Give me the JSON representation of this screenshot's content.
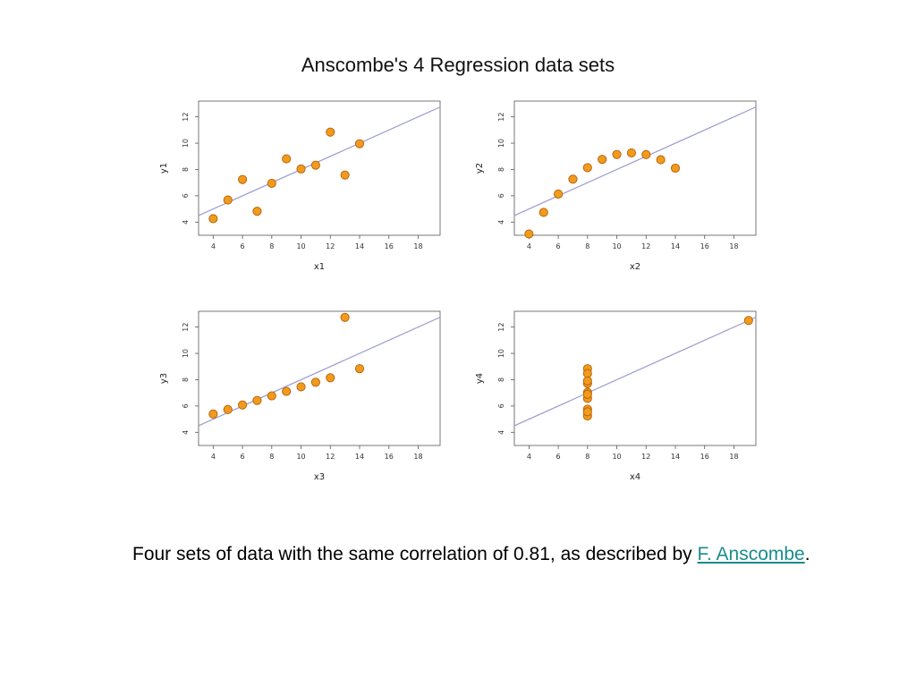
{
  "title": "Anscombe's 4 Regression data sets",
  "caption": {
    "text_before": "Four sets of data with the same correlation of 0.81, as described by ",
    "link_text": "F. Anscombe",
    "text_after": "."
  },
  "colors": {
    "point_fill": "#f29a1c",
    "point_stroke": "#b3600a",
    "regression_line": "#9b9bd0",
    "frame": "#555555",
    "link": "#1a8c8c"
  },
  "chart_data": [
    {
      "type": "scatter",
      "xlabel": "x1",
      "ylabel": "y1",
      "xlim": [
        3,
        19.5
      ],
      "ylim": [
        3,
        13.2
      ],
      "xticks": [
        "4",
        "6",
        "8",
        "10",
        "12",
        "14",
        "16",
        "18"
      ],
      "yticks": [
        "4",
        "6",
        "8",
        "10",
        "12"
      ],
      "x": [
        10,
        8,
        13,
        9,
        11,
        14,
        6,
        4,
        12,
        7,
        5
      ],
      "y": [
        8.04,
        6.95,
        7.58,
        8.81,
        8.33,
        9.96,
        7.24,
        4.26,
        10.84,
        4.82,
        5.68
      ],
      "regression": {
        "intercept": 3.0,
        "slope": 0.5
      }
    },
    {
      "type": "scatter",
      "xlabel": "x2",
      "ylabel": "y2",
      "xlim": [
        3,
        19.5
      ],
      "ylim": [
        3,
        13.2
      ],
      "xticks": [
        "4",
        "6",
        "8",
        "10",
        "12",
        "14",
        "16",
        "18"
      ],
      "yticks": [
        "4",
        "6",
        "8",
        "10",
        "12"
      ],
      "x": [
        10,
        8,
        13,
        9,
        11,
        14,
        6,
        4,
        12,
        7,
        5
      ],
      "y": [
        9.14,
        8.14,
        8.74,
        8.77,
        9.26,
        8.1,
        6.13,
        3.1,
        9.13,
        7.26,
        4.74
      ],
      "regression": {
        "intercept": 3.0,
        "slope": 0.5
      }
    },
    {
      "type": "scatter",
      "xlabel": "x3",
      "ylabel": "y3",
      "xlim": [
        3,
        19.5
      ],
      "ylim": [
        3,
        13.2
      ],
      "xticks": [
        "4",
        "6",
        "8",
        "10",
        "12",
        "14",
        "16",
        "18"
      ],
      "yticks": [
        "4",
        "6",
        "8",
        "10",
        "12"
      ],
      "x": [
        10,
        8,
        13,
        9,
        11,
        14,
        6,
        4,
        12,
        7,
        5
      ],
      "y": [
        7.46,
        6.77,
        12.74,
        7.11,
        7.81,
        8.84,
        6.08,
        5.39,
        8.15,
        6.42,
        5.73
      ],
      "regression": {
        "intercept": 3.0,
        "slope": 0.5
      }
    },
    {
      "type": "scatter",
      "xlabel": "x4",
      "ylabel": "y4",
      "xlim": [
        3,
        19.5
      ],
      "ylim": [
        3,
        13.2
      ],
      "xticks": [
        "4",
        "6",
        "8",
        "10",
        "12",
        "14",
        "16",
        "18"
      ],
      "yticks": [
        "4",
        "6",
        "8",
        "10",
        "12"
      ],
      "x": [
        8,
        8,
        8,
        8,
        8,
        8,
        8,
        19,
        8,
        8,
        8
      ],
      "y": [
        6.58,
        5.76,
        7.71,
        8.84,
        8.47,
        7.04,
        5.25,
        12.5,
        5.56,
        7.91,
        6.89
      ],
      "regression": {
        "intercept": 3.0,
        "slope": 0.5
      }
    }
  ]
}
